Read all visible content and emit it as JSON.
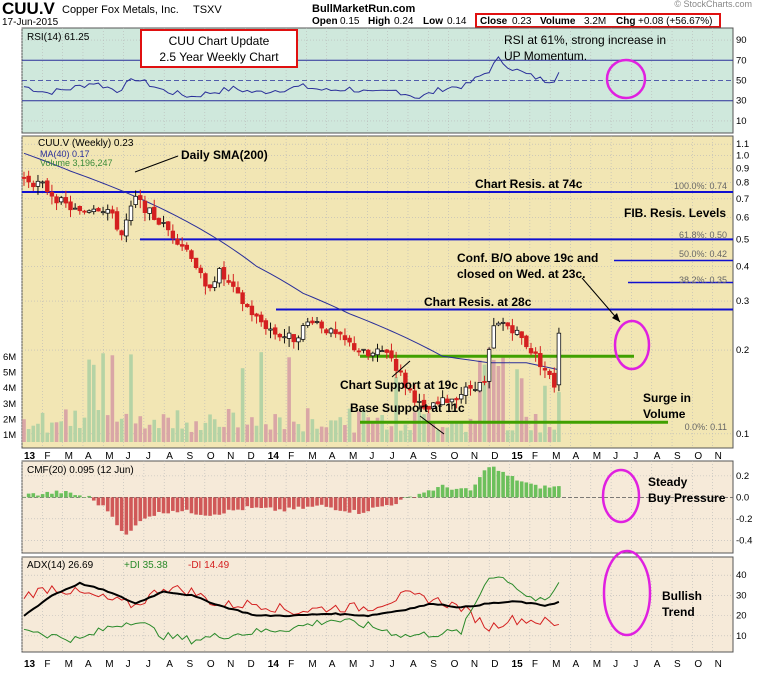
{
  "header": {
    "ticker": "CUU.V",
    "company": "Copper Fox Metals, Inc.",
    "exchange": "TSXV",
    "date": "17-Jun-2015",
    "site": "BullMarketRun.com",
    "open_label": "Open",
    "open": "0.15",
    "high_label": "High",
    "high": "0.24",
    "low_label": "Low",
    "low": "0.14",
    "close_label": "Close",
    "close": "0.23",
    "volume_label": "Volume",
    "volume": "3.2M",
    "chg_label": "Chg",
    "chg": "+0.08 (+56.67%)",
    "watermark": "© StockCharts.com"
  },
  "colors": {
    "rsi_bg": "#cfe8dc",
    "price_bg": "#f2e6b4",
    "lower_bg": "#f6ead9",
    "up": "#111111",
    "down": "#d42020",
    "ma": "#2a2f9a",
    "resistance": "#1010d0",
    "support": "#40a000",
    "annotation": "#e020e0",
    "cmf_pos": "#6cc05c",
    "cmf_neg": "#d05858"
  },
  "x_axis": {
    "months": [
      "13",
      "F",
      "M",
      "A",
      "M",
      "J",
      "J",
      "A",
      "S",
      "O",
      "N",
      "D",
      "14",
      "F",
      "M",
      "A",
      "M",
      "J",
      "J",
      "A",
      "S",
      "O",
      "N",
      "D",
      "15",
      "F",
      "M",
      "A",
      "M",
      "J",
      "J",
      "A",
      "S",
      "O",
      "N"
    ]
  },
  "rsi_panel": {
    "legend": "RSI(14) 61.25",
    "y_ticks": [
      90,
      70,
      50,
      30,
      10
    ],
    "note_line1": "RSI at 61%, strong increase in",
    "note_line2": "UP Momentum."
  },
  "title_box": {
    "line1": "CUU Chart Update",
    "line2": "2.5 Year Weekly Chart"
  },
  "price_panel": {
    "legend_ticker": "CUU.V (Weekly) 0.23",
    "legend_ma": "MA(40) 0.17",
    "legend_volume": "Volume 3,196,247",
    "y_ticks": [
      "1.1",
      "1.0",
      "0.9",
      "0.8",
      "0.7",
      "0.6",
      "0.5",
      "0.4",
      "0.3",
      "0.2",
      "0.1"
    ],
    "y_tick_values": [
      1.1,
      1.0,
      0.9,
      0.8,
      0.7,
      0.6,
      0.5,
      0.4,
      0.3,
      0.2,
      0.1
    ],
    "volume_ticks": [
      "6M",
      "5M",
      "4M",
      "3M",
      "2M",
      "1M"
    ],
    "annotations": {
      "sma": "Daily SMA(200)",
      "resis74": "Chart Resis. at 74c",
      "fib": "FIB. Resis. Levels",
      "bo1": "Conf. B/O above 19c and",
      "bo2": "closed on Wed. at 23c.",
      "resis28": "Chart Resis. at 28c",
      "support19": "Chart Support at 19c",
      "base11": "Base Support at 11c",
      "surge1": "Surge in",
      "surge2": "Volume"
    },
    "fib_labels": [
      "100.0%: 0.74",
      "61.8%: 0.50",
      "50.0%: 0.42",
      "38.2%: 0.35",
      "0.0%: 0.11"
    ]
  },
  "cmf_panel": {
    "legend": "CMF(20) 0.095 (12 Jun)",
    "y_ticks": [
      "0.2",
      "0.0",
      "-0.2",
      "-0.4"
    ],
    "note_line1": "Steady",
    "note_line2": "Buy Pressure"
  },
  "adx_panel": {
    "legend_adx": "ADX(14) 26.69",
    "legend_pdi": "+DI 35.38",
    "legend_mdi": "-DI 14.49",
    "y_ticks": [
      "40",
      "30",
      "20",
      "10"
    ],
    "note_line1": "Bullish",
    "note_line2": "Trend"
  },
  "chart_data": {
    "type": "line",
    "title": "CUU Chart Update 2.5 Year Weekly Chart",
    "price_scale": "log",
    "ylim": [
      0.1,
      1.1
    ],
    "ohlc_anchors": [
      {
        "week": 0,
        "close": 0.83
      },
      {
        "week": 4,
        "close": 0.78
      },
      {
        "week": 8,
        "close": 0.68
      },
      {
        "week": 12,
        "close": 0.62
      },
      {
        "week": 15,
        "close": 0.66
      },
      {
        "week": 18,
        "close": 0.64
      },
      {
        "week": 21,
        "close": 0.52
      },
      {
        "week": 24,
        "close": 0.7
      },
      {
        "week": 28,
        "close": 0.6
      },
      {
        "week": 32,
        "close": 0.52
      },
      {
        "week": 36,
        "close": 0.44
      },
      {
        "week": 39,
        "close": 0.33
      },
      {
        "week": 42,
        "close": 0.38
      },
      {
        "week": 46,
        "close": 0.31
      },
      {
        "week": 50,
        "close": 0.26
      },
      {
        "week": 54,
        "close": 0.23
      },
      {
        "week": 58,
        "close": 0.22
      },
      {
        "week": 62,
        "close": 0.26
      },
      {
        "week": 66,
        "close": 0.23
      },
      {
        "week": 70,
        "close": 0.21
      },
      {
        "week": 74,
        "close": 0.19
      },
      {
        "week": 78,
        "close": 0.2
      },
      {
        "week": 82,
        "close": 0.15
      },
      {
        "week": 86,
        "close": 0.12
      },
      {
        "week": 90,
        "close": 0.13
      },
      {
        "week": 94,
        "close": 0.14
      },
      {
        "week": 97,
        "close": 0.15
      },
      {
        "week": 99,
        "close": 0.15
      },
      {
        "week": 101,
        "close": 0.24
      },
      {
        "week": 103,
        "close": 0.25
      },
      {
        "week": 105,
        "close": 0.24
      },
      {
        "week": 108,
        "close": 0.21
      },
      {
        "week": 112,
        "close": 0.17
      },
      {
        "week": 114,
        "close": 0.15
      },
      {
        "week": 115,
        "close": 0.23
      }
    ],
    "ma40": [
      {
        "week": 0,
        "value": 1.02
      },
      {
        "week": 10,
        "value": 0.88
      },
      {
        "week": 20,
        "value": 0.76
      },
      {
        "week": 30,
        "value": 0.64
      },
      {
        "week": 40,
        "value": 0.52
      },
      {
        "week": 50,
        "value": 0.4
      },
      {
        "week": 60,
        "value": 0.32
      },
      {
        "week": 70,
        "value": 0.27
      },
      {
        "week": 80,
        "value": 0.23
      },
      {
        "week": 90,
        "value": 0.19
      },
      {
        "week": 100,
        "value": 0.18
      },
      {
        "week": 108,
        "value": 0.18
      },
      {
        "week": 115,
        "value": 0.17
      }
    ],
    "levels": [
      {
        "label": "Chart Resis. at 74c",
        "value": 0.74
      },
      {
        "label": "61.8%",
        "value": 0.5
      },
      {
        "label": "50.0%",
        "value": 0.42
      },
      {
        "label": "38.2%",
        "value": 0.35
      },
      {
        "label": "Chart Resis. at 28c",
        "value": 0.28
      },
      {
        "label": "Chart Support at 19c",
        "value": 0.19
      },
      {
        "label": "Base Support at 11c",
        "value": 0.11
      }
    ],
    "rsi_anchors": [
      {
        "week": 0,
        "value": 44
      },
      {
        "week": 5,
        "value": 38
      },
      {
        "week": 10,
        "value": 42
      },
      {
        "week": 15,
        "value": 48
      },
      {
        "week": 20,
        "value": 40
      },
      {
        "week": 24,
        "value": 52
      },
      {
        "week": 30,
        "value": 40
      },
      {
        "week": 36,
        "value": 34
      },
      {
        "week": 40,
        "value": 38
      },
      {
        "week": 45,
        "value": 42
      },
      {
        "week": 50,
        "value": 38
      },
      {
        "week": 55,
        "value": 41
      },
      {
        "week": 60,
        "value": 44
      },
      {
        "week": 65,
        "value": 40
      },
      {
        "week": 70,
        "value": 42
      },
      {
        "week": 75,
        "value": 37
      },
      {
        "week": 80,
        "value": 40
      },
      {
        "week": 85,
        "value": 33
      },
      {
        "week": 90,
        "value": 42
      },
      {
        "week": 95,
        "value": 45
      },
      {
        "week": 100,
        "value": 60
      },
      {
        "week": 102,
        "value": 71
      },
      {
        "week": 105,
        "value": 62
      },
      {
        "week": 108,
        "value": 56
      },
      {
        "week": 112,
        "value": 50
      },
      {
        "week": 114,
        "value": 51
      },
      {
        "week": 115,
        "value": 61
      }
    ],
    "adx_anchors": [
      {
        "week": 0,
        "value": 20
      },
      {
        "week": 6,
        "value": 30
      },
      {
        "week": 12,
        "value": 36
      },
      {
        "week": 18,
        "value": 32
      },
      {
        "week": 24,
        "value": 26
      },
      {
        "week": 30,
        "value": 32
      },
      {
        "week": 36,
        "value": 30
      },
      {
        "week": 42,
        "value": 25
      },
      {
        "week": 50,
        "value": 20
      },
      {
        "week": 58,
        "value": 20
      },
      {
        "week": 66,
        "value": 21
      },
      {
        "week": 74,
        "value": 20
      },
      {
        "week": 82,
        "value": 23
      },
      {
        "week": 88,
        "value": 26
      },
      {
        "week": 94,
        "value": 24
      },
      {
        "week": 100,
        "value": 26
      },
      {
        "week": 106,
        "value": 27
      },
      {
        "week": 112,
        "value": 25
      },
      {
        "week": 115,
        "value": 26.69
      }
    ],
    "pdi_anchors": [
      {
        "week": 0,
        "value": 14
      },
      {
        "week": 6,
        "value": 10
      },
      {
        "week": 12,
        "value": 8
      },
      {
        "week": 18,
        "value": 14
      },
      {
        "week": 24,
        "value": 18
      },
      {
        "week": 30,
        "value": 10
      },
      {
        "week": 36,
        "value": 8
      },
      {
        "week": 42,
        "value": 10
      },
      {
        "week": 50,
        "value": 12
      },
      {
        "week": 58,
        "value": 14
      },
      {
        "week": 66,
        "value": 18
      },
      {
        "week": 74,
        "value": 15
      },
      {
        "week": 82,
        "value": 10
      },
      {
        "week": 88,
        "value": 11
      },
      {
        "week": 94,
        "value": 12
      },
      {
        "week": 100,
        "value": 40
      },
      {
        "week": 104,
        "value": 38
      },
      {
        "week": 108,
        "value": 30
      },
      {
        "week": 112,
        "value": 26
      },
      {
        "week": 115,
        "value": 35.38
      }
    ],
    "mdi_anchors": [
      {
        "week": 0,
        "value": 30
      },
      {
        "week": 6,
        "value": 34
      },
      {
        "week": 12,
        "value": 31
      },
      {
        "week": 18,
        "value": 28
      },
      {
        "week": 24,
        "value": 25
      },
      {
        "week": 30,
        "value": 34
      },
      {
        "week": 36,
        "value": 32
      },
      {
        "week": 42,
        "value": 25
      },
      {
        "week": 50,
        "value": 26
      },
      {
        "week": 58,
        "value": 22
      },
      {
        "week": 66,
        "value": 24
      },
      {
        "week": 74,
        "value": 24
      },
      {
        "week": 82,
        "value": 30
      },
      {
        "week": 88,
        "value": 28
      },
      {
        "week": 94,
        "value": 24
      },
      {
        "week": 100,
        "value": 14
      },
      {
        "week": 104,
        "value": 18
      },
      {
        "week": 108,
        "value": 18
      },
      {
        "week": 112,
        "value": 17
      },
      {
        "week": 115,
        "value": 14.49
      }
    ],
    "cmf_anchors": [
      {
        "week": 0,
        "value": 0.02
      },
      {
        "week": 8,
        "value": 0.05
      },
      {
        "week": 14,
        "value": 0.0
      },
      {
        "week": 18,
        "value": -0.12
      },
      {
        "week": 22,
        "value": -0.36
      },
      {
        "week": 26,
        "value": -0.18
      },
      {
        "week": 32,
        "value": -0.12
      },
      {
        "week": 40,
        "value": -0.16
      },
      {
        "week": 48,
        "value": -0.1
      },
      {
        "week": 56,
        "value": -0.12
      },
      {
        "week": 64,
        "value": -0.08
      },
      {
        "week": 72,
        "value": -0.14
      },
      {
        "week": 80,
        "value": -0.05
      },
      {
        "week": 86,
        "value": 0.05
      },
      {
        "week": 90,
        "value": 0.1
      },
      {
        "week": 96,
        "value": 0.06
      },
      {
        "week": 100,
        "value": 0.3
      },
      {
        "week": 104,
        "value": 0.2
      },
      {
        "week": 110,
        "value": 0.1
      },
      {
        "week": 115,
        "value": 0.095
      }
    ]
  }
}
